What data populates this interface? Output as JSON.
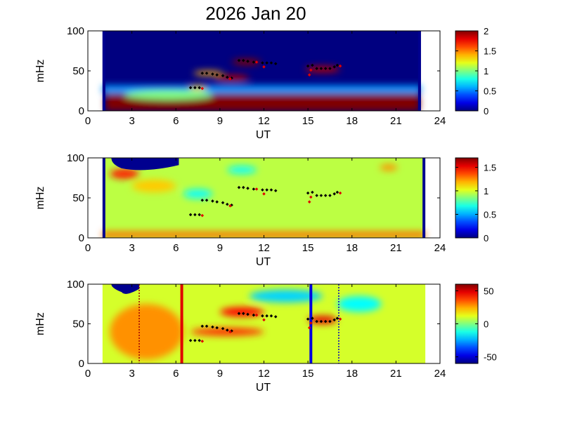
{
  "figure_title": "2026 Jan 20",
  "chart_data": [
    {
      "type": "heatmap",
      "title": "",
      "xlabel": "UT",
      "ylabel": "mHz",
      "xlim": [
        0,
        24
      ],
      "ylim": [
        0,
        100
      ],
      "xticks": [
        0,
        3,
        6,
        9,
        12,
        15,
        18,
        21,
        24
      ],
      "yticks": [
        0,
        50,
        100
      ],
      "data_range_ut": [
        1.0,
        22.7
      ],
      "colorbar": {
        "min": 0,
        "max": 2,
        "ticks": [
          "0",
          "0.5",
          "1",
          "1.5",
          "2"
        ],
        "colormap": "jet"
      },
      "background_level": 0.0,
      "bands": [
        {
          "x0": 1.2,
          "x1": 22.6,
          "y0": 0,
          "y1": 22,
          "level": 2.0
        },
        {
          "x0": 1.0,
          "x1": 22.7,
          "y0": 22,
          "y1": 32,
          "level": 0.55
        }
      ],
      "blobs": [
        {
          "x": 10.8,
          "y": 61,
          "rx": 1.0,
          "ry": 4,
          "level": 2.0
        },
        {
          "x": 16.0,
          "y": 52,
          "rx": 1.2,
          "ry": 4,
          "level": 1.9
        },
        {
          "x": 9.8,
          "y": 41,
          "rx": 1.2,
          "ry": 4,
          "level": 1.9
        },
        {
          "x": 8.2,
          "y": 47,
          "rx": 1.0,
          "ry": 3,
          "level": 1.4
        },
        {
          "x": 7.5,
          "y": 29,
          "rx": 0.6,
          "ry": 3,
          "level": 1.3
        },
        {
          "x": 5.5,
          "y": 20,
          "rx": 3.0,
          "ry": 6,
          "level": 1.0
        }
      ]
    },
    {
      "type": "heatmap",
      "title": "",
      "xlabel": "UT",
      "ylabel": "mHz",
      "xlim": [
        0,
        24
      ],
      "ylim": [
        0,
        100
      ],
      "xticks": [
        0,
        3,
        6,
        9,
        12,
        15,
        18,
        21,
        24
      ],
      "yticks": [
        0,
        50,
        100
      ],
      "data_range_ut": [
        1.0,
        23.0
      ],
      "colorbar": {
        "min": 0,
        "max": 1.7,
        "ticks": [
          "0",
          "0.5",
          "1",
          "1.5"
        ],
        "colormap": "jet"
      },
      "background_level": 0.95,
      "bands": [
        {
          "x0": 1.0,
          "x1": 23.0,
          "y0": 0,
          "y1": 8,
          "level": 1.3
        }
      ],
      "blobs": [
        {
          "x": 2.5,
          "y": 80,
          "rx": 1.0,
          "ry": 6,
          "level": 1.45
        },
        {
          "x": 4.5,
          "y": 65,
          "rx": 1.5,
          "ry": 8,
          "level": 1.15
        },
        {
          "x": 7.5,
          "y": 55,
          "rx": 1.0,
          "ry": 6,
          "level": 0.65
        },
        {
          "x": 10.5,
          "y": 85,
          "rx": 1.0,
          "ry": 5,
          "level": 0.65
        },
        {
          "x": 20.5,
          "y": 88,
          "rx": 0.6,
          "ry": 4,
          "level": 1.25
        }
      ],
      "mask": {
        "x0": 1.6,
        "x1": 6.2,
        "y_top": 100,
        "y_bottom": 87,
        "level": "none"
      }
    },
    {
      "type": "heatmap",
      "title": "",
      "xlabel": "UT",
      "ylabel": "mHz",
      "xlim": [
        0,
        24
      ],
      "ylim": [
        0,
        100
      ],
      "xticks": [
        0,
        3,
        6,
        9,
        12,
        15,
        18,
        21,
        24
      ],
      "yticks": [
        0,
        50,
        100
      ],
      "data_range_ut": [
        1.0,
        23.0
      ],
      "colorbar": {
        "min": -60,
        "max": 60,
        "ticks": [
          "50",
          "0",
          "-50"
        ],
        "colormap": "jet"
      },
      "background_level": 10,
      "bands": [],
      "blobs": [
        {
          "x": 4.0,
          "y": 40,
          "rx": 2.5,
          "ry": 35,
          "level": 28
        },
        {
          "x": 10.5,
          "y": 65,
          "rx": 1.5,
          "ry": 6,
          "level": 45
        },
        {
          "x": 9.5,
          "y": 40,
          "rx": 2.5,
          "ry": 5,
          "level": 40
        },
        {
          "x": 16.0,
          "y": 55,
          "rx": 1.0,
          "ry": 5,
          "level": 48
        },
        {
          "x": 13.5,
          "y": 85,
          "rx": 2.5,
          "ry": 8,
          "level": -20
        },
        {
          "x": 18.5,
          "y": 75,
          "rx": 1.5,
          "ry": 10,
          "level": -15
        }
      ],
      "mask": {
        "x0": 1.6,
        "x1": 3.5,
        "y_top": 100,
        "y_bottom": 90,
        "level": "none"
      },
      "vlines": [
        {
          "x": 3.5,
          "color": "#a00000",
          "style": "dotted"
        },
        {
          "x": 6.4,
          "color": "#e00000",
          "style": "solid"
        },
        {
          "x": 15.2,
          "color": "#0000e0",
          "style": "solid"
        },
        {
          "x": 17.1,
          "color": "#0000c0",
          "style": "dotted"
        }
      ]
    }
  ],
  "markers": {
    "black": [
      {
        "x": 7.0,
        "y": 29
      },
      {
        "x": 7.3,
        "y": 29
      },
      {
        "x": 7.6,
        "y": 29
      },
      {
        "x": 7.8,
        "y": 47
      },
      {
        "x": 8.1,
        "y": 47
      },
      {
        "x": 8.5,
        "y": 46
      },
      {
        "x": 8.8,
        "y": 45
      },
      {
        "x": 9.2,
        "y": 44
      },
      {
        "x": 9.5,
        "y": 42
      },
      {
        "x": 9.8,
        "y": 41
      },
      {
        "x": 10.3,
        "y": 63
      },
      {
        "x": 10.6,
        "y": 63
      },
      {
        "x": 10.9,
        "y": 62
      },
      {
        "x": 11.3,
        "y": 61
      },
      {
        "x": 11.9,
        "y": 60
      },
      {
        "x": 12.2,
        "y": 60
      },
      {
        "x": 12.5,
        "y": 60
      },
      {
        "x": 12.8,
        "y": 59
      },
      {
        "x": 15.0,
        "y": 56
      },
      {
        "x": 15.3,
        "y": 57
      },
      {
        "x": 15.6,
        "y": 53
      },
      {
        "x": 15.9,
        "y": 53
      },
      {
        "x": 16.2,
        "y": 53
      },
      {
        "x": 16.5,
        "y": 53
      },
      {
        "x": 16.8,
        "y": 55
      },
      {
        "x": 17.0,
        "y": 57
      }
    ],
    "red": [
      {
        "x": 7.8,
        "y": 28
      },
      {
        "x": 9.7,
        "y": 40
      },
      {
        "x": 11.5,
        "y": 61
      },
      {
        "x": 12.0,
        "y": 55
      },
      {
        "x": 15.1,
        "y": 45
      },
      {
        "x": 15.2,
        "y": 51
      },
      {
        "x": 17.2,
        "y": 56
      }
    ]
  }
}
